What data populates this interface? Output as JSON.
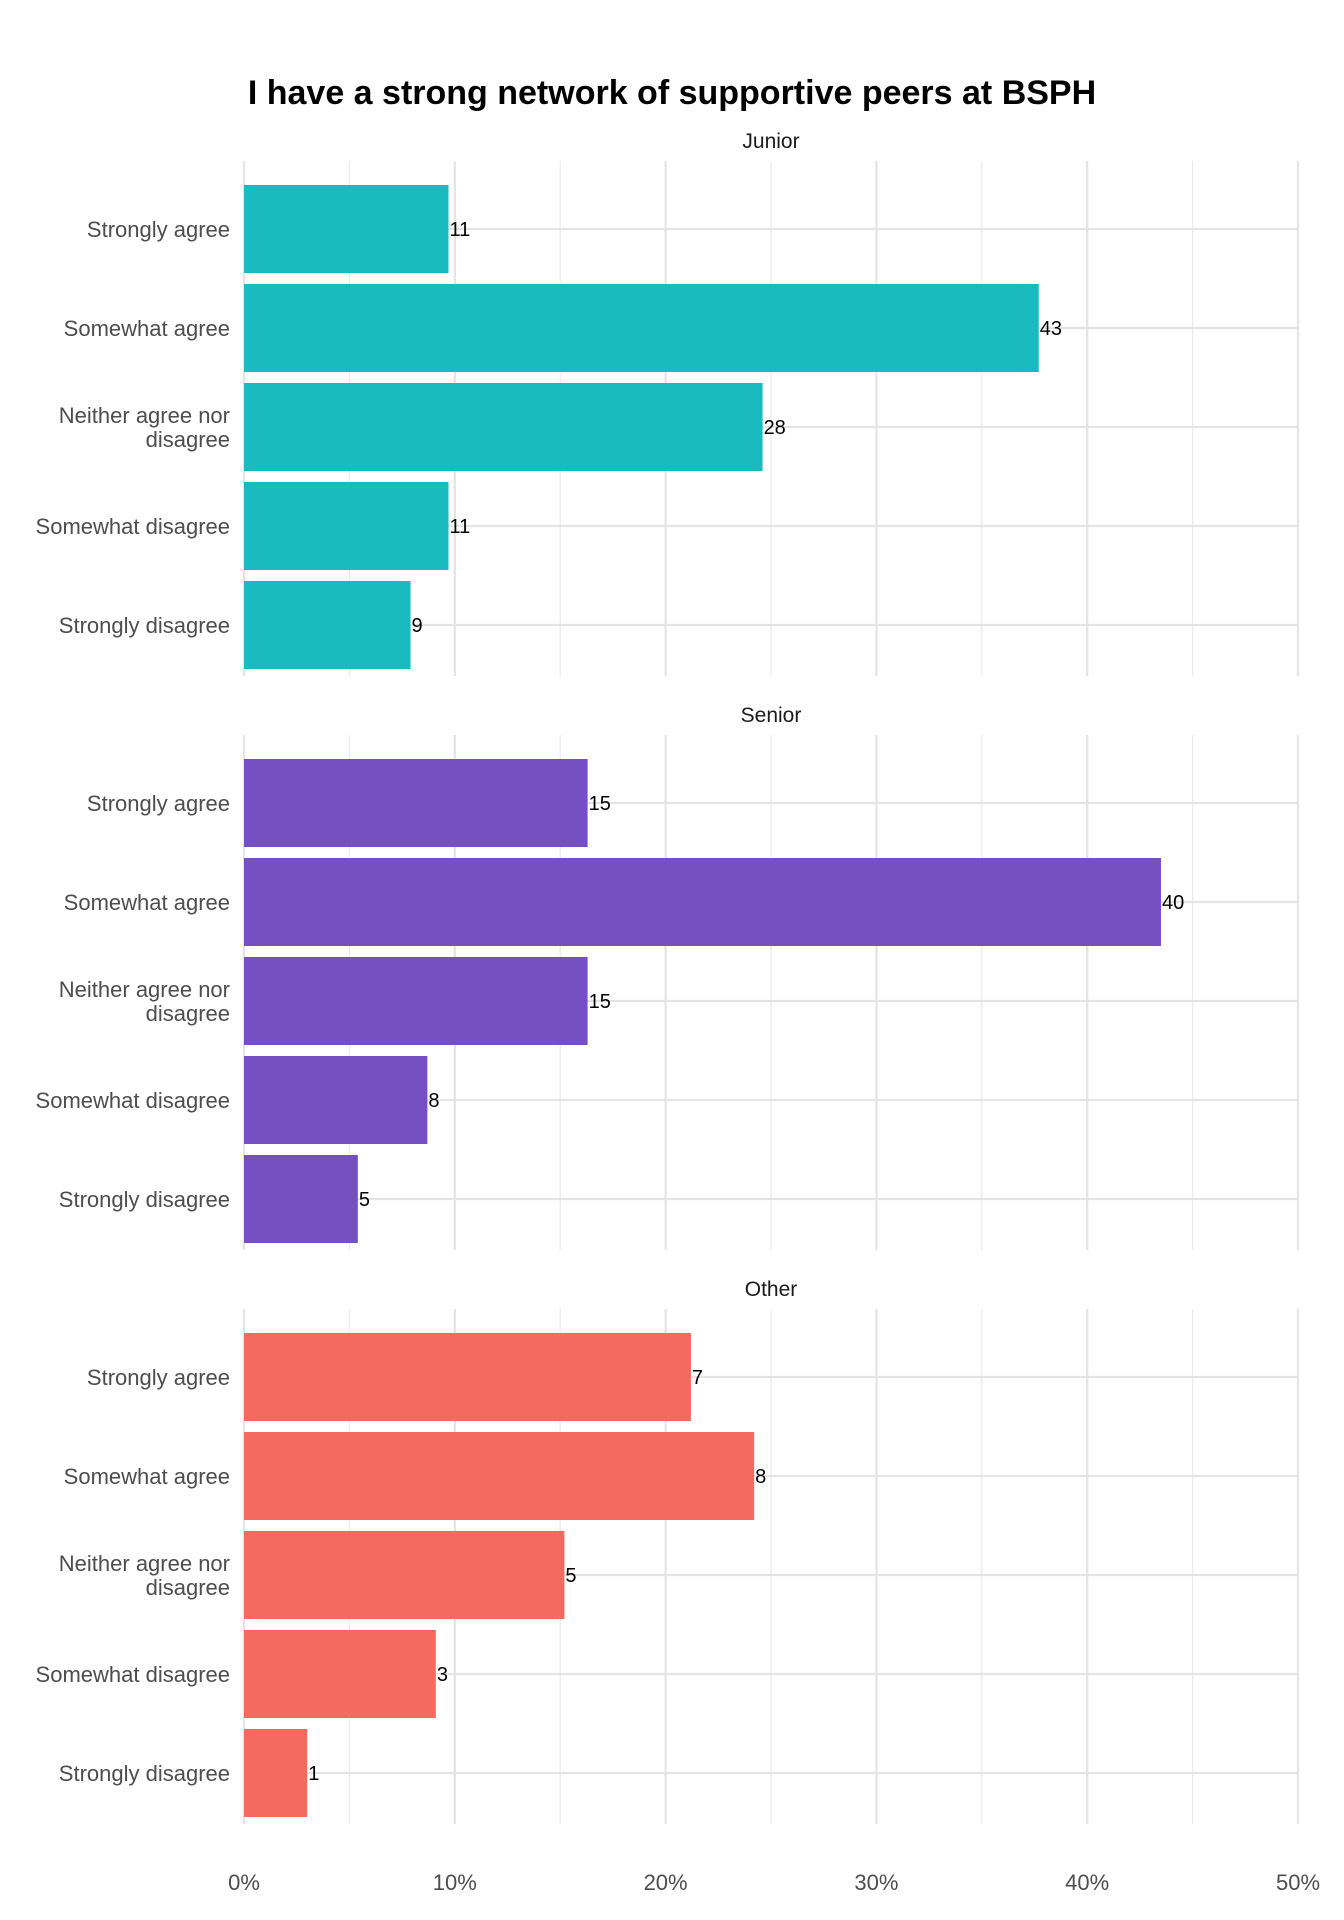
{
  "chart_data": {
    "type": "bar",
    "orientation": "horizontal",
    "title": "I have a strong network of supportive peers at BSPH",
    "xlabel": "",
    "ylabel": "",
    "x_ticks": [
      "0%",
      "10%",
      "20%",
      "30%",
      "40%",
      "50%"
    ],
    "xlim": [
      0,
      0.5
    ],
    "grid": true,
    "legend": "none",
    "categories": [
      "Strongly agree",
      "Somewhat agree",
      "Neither agree nor disagree",
      "Somewhat disagree",
      "Strongly disagree"
    ],
    "category_label_lines": [
      [
        "Strongly agree"
      ],
      [
        "Somewhat agree"
      ],
      [
        "Neither agree nor",
        "disagree"
      ],
      [
        "Somewhat disagree"
      ],
      [
        "Strongly disagree"
      ]
    ],
    "panels": [
      {
        "name": "Junior",
        "color": "#1ABAC1",
        "counts": [
          11,
          43,
          28,
          11,
          9
        ],
        "proportions": [
          0.097,
          0.377,
          0.246,
          0.097,
          0.079
        ]
      },
      {
        "name": "Senior",
        "color": "#7550C2",
        "counts": [
          15,
          40,
          15,
          8,
          5
        ],
        "proportions": [
          0.163,
          0.435,
          0.163,
          0.087,
          0.054
        ]
      },
      {
        "name": "Other",
        "color": "#F46A60",
        "counts": [
          7,
          8,
          5,
          3,
          1
        ],
        "proportions": [
          0.212,
          0.242,
          0.152,
          0.091,
          0.03
        ]
      }
    ]
  }
}
